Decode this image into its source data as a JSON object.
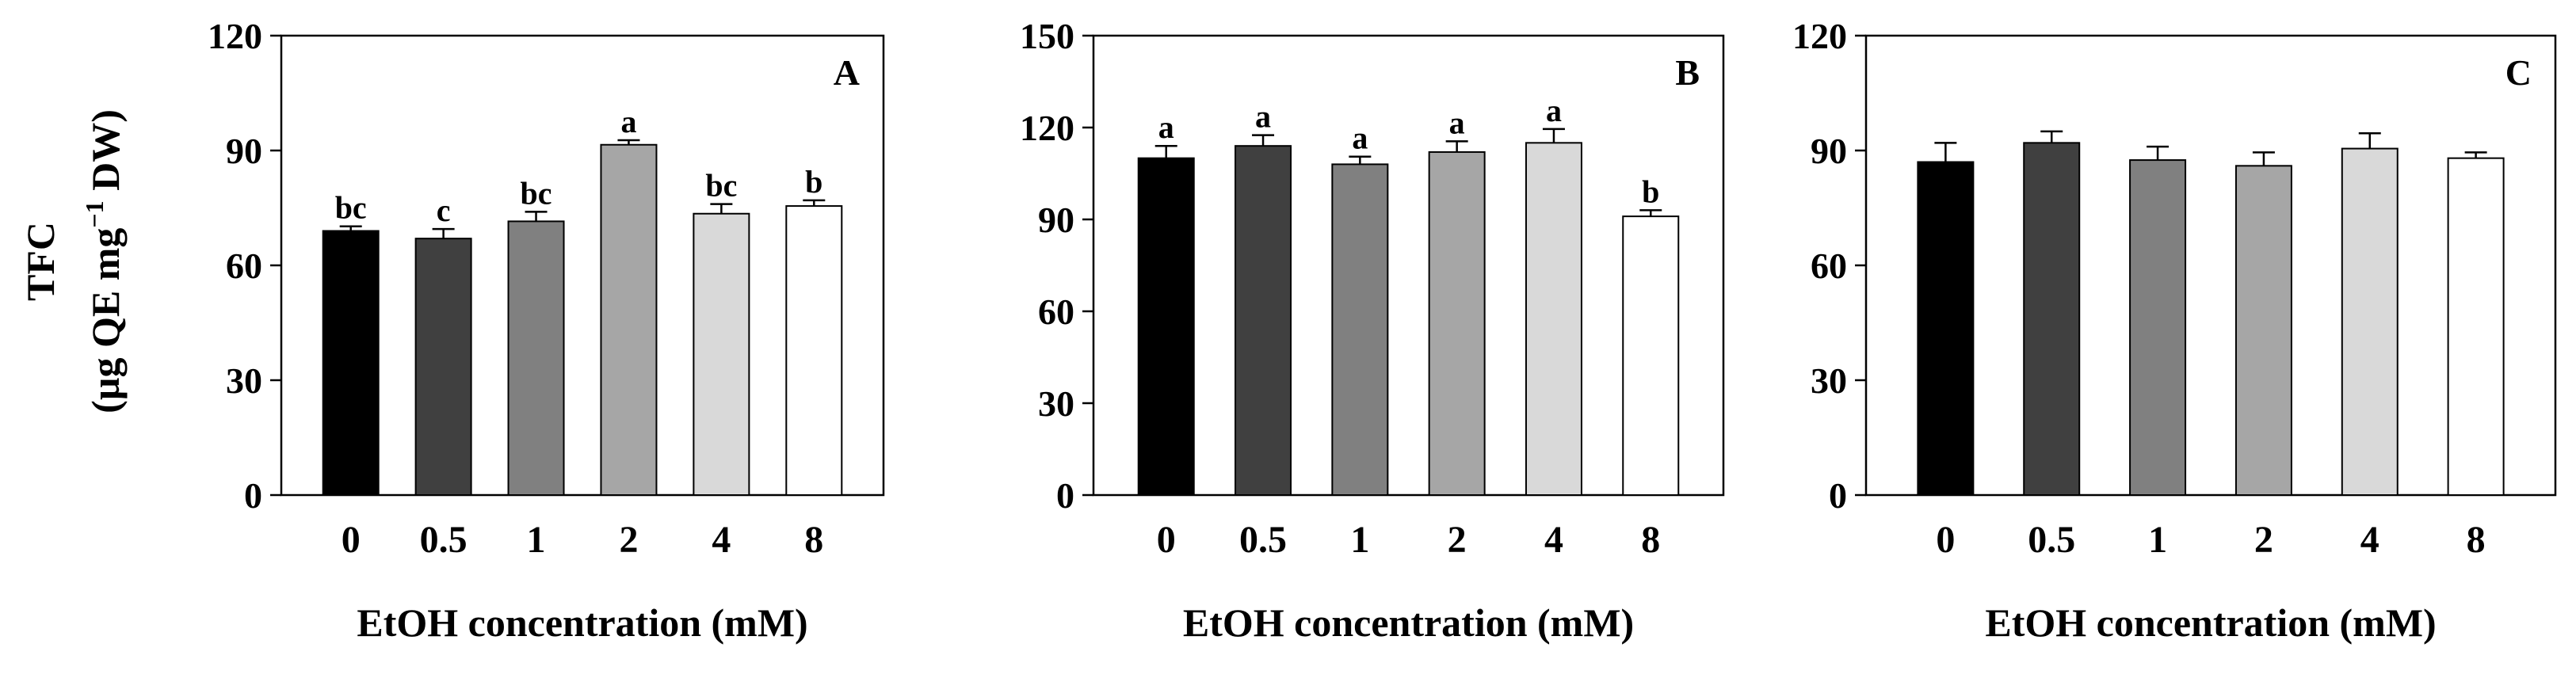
{
  "y_axis_label": {
    "line1": "TFC",
    "line2_prefix": "(µg QE mg",
    "line2_sup": "−1",
    "line2_suffix": " DW)"
  },
  "chart_data": [
    {
      "type": "bar",
      "panel_label": "A",
      "categories": [
        "0",
        "0.5",
        "1",
        "2",
        "4",
        "8"
      ],
      "values": [
        69,
        67,
        71.5,
        91.5,
        73.5,
        75.5
      ],
      "errors": [
        1.2,
        2.5,
        2.5,
        1.2,
        2.5,
        1.5
      ],
      "significance": [
        "bc",
        "c",
        "bc",
        "a",
        "bc",
        "b"
      ],
      "bar_colors": [
        "#000000",
        "#404040",
        "#808080",
        "#a6a6a6",
        "#d9d9d9",
        "#ffffff"
      ],
      "xlabel": "EtOH concentration (mM)",
      "ylim": [
        0,
        120
      ],
      "yticks": [
        "0",
        "30",
        "60",
        "90",
        "120"
      ],
      "grid": false
    },
    {
      "type": "bar",
      "panel_label": "B",
      "categories": [
        "0",
        "0.5",
        "1",
        "2",
        "4",
        "8"
      ],
      "values": [
        110,
        114,
        108,
        112,
        115,
        91
      ],
      "errors": [
        4,
        3.5,
        2.5,
        3.5,
        4.5,
        2
      ],
      "significance": [
        "a",
        "a",
        "a",
        "a",
        "a",
        "b"
      ],
      "bar_colors": [
        "#000000",
        "#404040",
        "#808080",
        "#a6a6a6",
        "#d9d9d9",
        "#ffffff"
      ],
      "xlabel": "EtOH concentration (mM)",
      "ylim": [
        0,
        150
      ],
      "yticks": [
        "0",
        "30",
        "60",
        "90",
        "120",
        "150"
      ],
      "grid": false
    },
    {
      "type": "bar",
      "panel_label": "C",
      "categories": [
        "0",
        "0.5",
        "1",
        "2",
        "4",
        "8"
      ],
      "values": [
        87,
        92,
        87.5,
        86,
        90.5,
        88
      ],
      "errors": [
        5,
        3,
        3.5,
        3.5,
        4,
        1.5
      ],
      "significance": [
        "",
        "",
        "",
        "",
        "",
        ""
      ],
      "bar_colors": [
        "#000000",
        "#404040",
        "#808080",
        "#a6a6a6",
        "#d9d9d9",
        "#ffffff"
      ],
      "xlabel": "EtOH concentration (mM)",
      "ylim": [
        0,
        120
      ],
      "yticks": [
        "0",
        "30",
        "60",
        "90",
        "120"
      ],
      "grid": false
    }
  ]
}
